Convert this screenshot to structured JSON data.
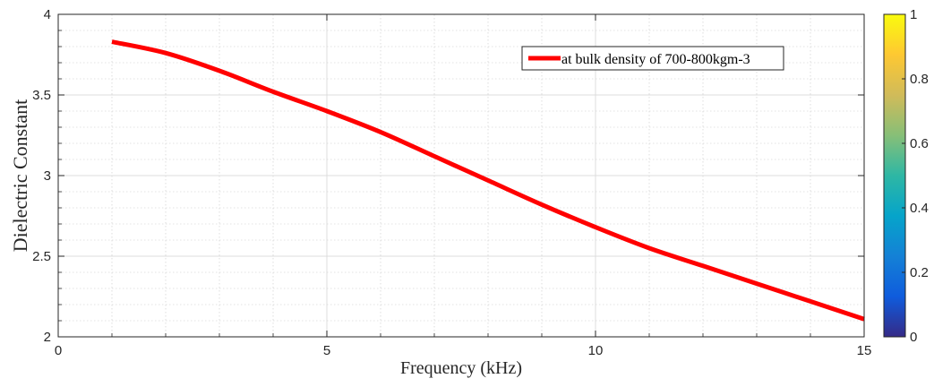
{
  "chart_data": {
    "type": "line",
    "xlabel": "Frequency (kHz)",
    "ylabel": "Dielectric Constant",
    "xlim": [
      0,
      15
    ],
    "ylim": [
      2,
      4
    ],
    "x_ticks": [
      0,
      5,
      10,
      15
    ],
    "y_ticks": [
      2,
      2.5,
      3,
      3.5,
      4
    ],
    "x_tick_labels": [
      "0",
      "5",
      "10",
      "15"
    ],
    "y_tick_labels": [
      "2",
      "2.5",
      "3",
      "3.5",
      "4"
    ],
    "grid": true,
    "minor_grid": true,
    "legend_position": "top-right",
    "series": [
      {
        "name": "at bulk density of 700-800kgm-3",
        "color": "#ff0000",
        "x": [
          1,
          2,
          3,
          4,
          5,
          6,
          7,
          8,
          9,
          10,
          11,
          12,
          13,
          14,
          15
        ],
        "y": [
          3.83,
          3.76,
          3.65,
          3.52,
          3.4,
          3.27,
          3.12,
          2.97,
          2.82,
          2.68,
          2.55,
          2.44,
          2.33,
          2.22,
          2.11
        ]
      }
    ],
    "colorbar": {
      "min": 0,
      "max": 1,
      "tick_labels": [
        "0",
        "0.2",
        "0.4",
        "0.6",
        "0.8",
        "1"
      ],
      "tick_values": [
        0,
        0.2,
        0.4,
        0.6,
        0.8,
        1
      ],
      "colormap": "parula",
      "colormap_stops": [
        "#352a87",
        "#0f5cdd",
        "#1481d6",
        "#06a4ca",
        "#2eb7a4",
        "#87bf77",
        "#d1bb59",
        "#fec832",
        "#f9fb0e"
      ]
    }
  }
}
